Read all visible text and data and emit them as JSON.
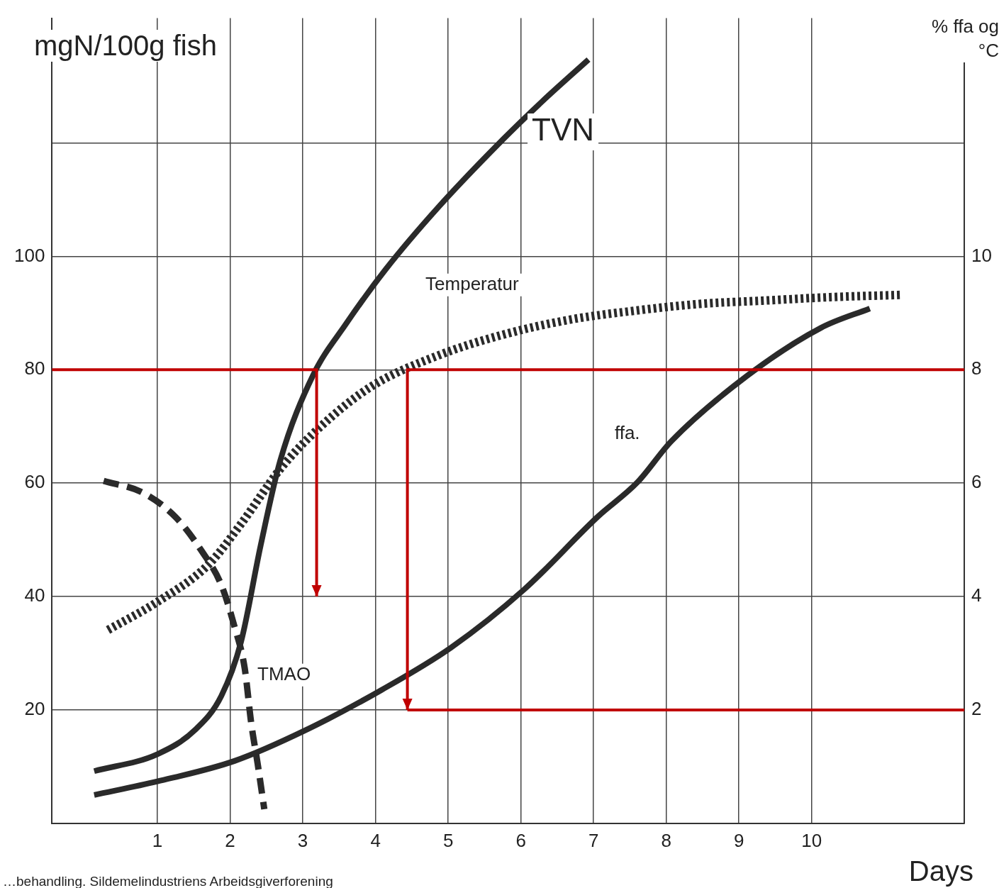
{
  "chart_data": {
    "type": "line",
    "xlabel": "Days",
    "ylabel": "mgN/100g fish",
    "y2label": "% ffa og °C",
    "annotations": [
      "…behandling. Sildemelindustriens Arbeidsgiverforening"
    ],
    "xlim": [
      -0.45,
      12.1
    ],
    "xticks": [
      1,
      2,
      3,
      4,
      5,
      6,
      7,
      8,
      9,
      10
    ],
    "ylim": [
      0,
      142
    ],
    "yticks": [
      20,
      40,
      60,
      80,
      100,
      {
        "value": 120,
        "label": null
      }
    ],
    "y2lim": [
      0,
      14.2
    ],
    "y2ticks": [
      2,
      4,
      6,
      8,
      10
    ],
    "grid": true,
    "legend": false,
    "marker": "none",
    "series": [
      {
        "name": "TVN",
        "color": "#2a2a2a",
        "line_style": "solid",
        "x": [
          0.13,
          1,
          1.52,
          1.88,
          2.15,
          2.42,
          2.69,
          3.14,
          3.59,
          4.14,
          4.86,
          5.76,
          6.3,
          6.93
        ],
        "values": [
          9.2,
          12.2,
          16.5,
          22.5,
          32,
          49,
          64,
          79,
          88,
          97.7,
          108.6,
          120.7,
          127.4,
          134.7
        ]
      },
      {
        "name": "TMAO",
        "color": "#2a2a2a",
        "line_style": "dashed",
        "x": [
          0.26,
          0.8,
          1.25,
          1.61,
          1.88,
          2.06,
          2.2,
          2.29,
          2.38,
          2.47
        ],
        "values": [
          60.4,
          58.3,
          54,
          48,
          42,
          34.7,
          27.4,
          17.7,
          10.4,
          2.5
        ]
      },
      {
        "name": "Temperatur",
        "color": "#2a2a2a",
        "line_style": "dotted",
        "axis": "y2",
        "x": [
          0.32,
          0.98,
          1.7,
          2.15,
          2.69,
          3.23,
          3.95,
          4.86,
          5.76,
          6.66,
          7.56,
          8.46,
          9.36,
          10.26,
          11.25
        ],
        "values": [
          3.41,
          3.89,
          4.56,
          5.28,
          6.25,
          6.98,
          7.71,
          8.25,
          8.62,
          8.88,
          9.04,
          9.16,
          9.22,
          9.28,
          9.32
        ]
      },
      {
        "name": "ffa.",
        "color": "#2a2a2a",
        "line_style": "solid",
        "axis": "y2",
        "x": [
          0.13,
          1,
          2.06,
          3.05,
          4.08,
          5.04,
          6.05,
          7.06,
          7.6,
          8.07,
          9.11,
          10.13,
          10.8
        ],
        "values": [
          0.5,
          0.74,
          1.1,
          1.65,
          2.35,
          3.1,
          4.13,
          5.41,
          6.01,
          6.74,
          7.89,
          8.74,
          9.08
        ]
      }
    ]
  }
}
